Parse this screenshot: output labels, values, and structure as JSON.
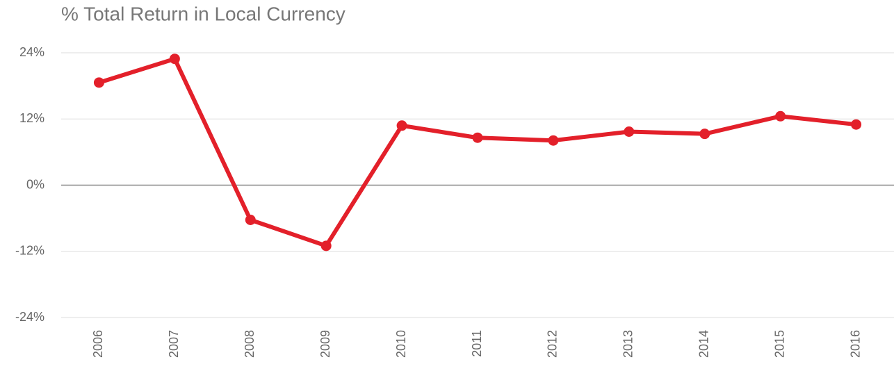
{
  "chart_data": {
    "type": "line",
    "title": "% Total Return in Local Currency",
    "categories": [
      "2006",
      "2007",
      "2008",
      "2009",
      "2010",
      "2011",
      "2012",
      "2013",
      "2014",
      "2015",
      "2016"
    ],
    "series": [
      {
        "color": "#e3202a",
        "values": [
          18.6,
          22.9,
          -6.3,
          -11.0,
          10.8,
          8.6,
          8.1,
          9.7,
          9.3,
          12.5,
          11.0
        ]
      }
    ],
    "ylim": [
      -24,
      24
    ],
    "yticks": [
      {
        "value": -24,
        "label": "-24%"
      },
      {
        "value": -12,
        "label": "-12%"
      },
      {
        "value": 0,
        "label": "0%"
      },
      {
        "value": 12,
        "label": "12%"
      },
      {
        "value": 24,
        "label": "24%"
      }
    ],
    "grid": true
  }
}
